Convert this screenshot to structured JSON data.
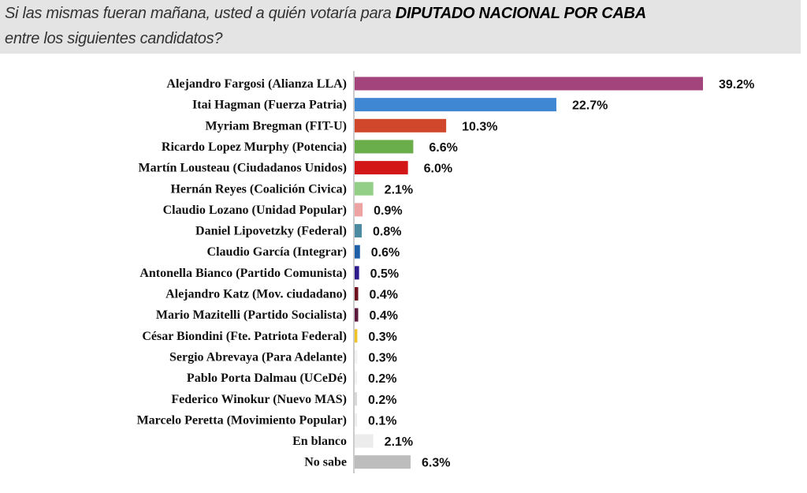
{
  "header": {
    "question_part1": "Si las mismas fueran mañana, usted a quién votaría para ",
    "question_bold": "DIPUTADO NACIONAL POR CABA",
    "question_part2": "entre los siguientes candidatos?"
  },
  "chart_data": {
    "type": "bar",
    "orientation": "horizontal",
    "title": "Si las mismas fueran mañana, usted a quién votaría para DIPUTADO NACIONAL POR CABA entre los siguientes candidatos?",
    "xlabel": "",
    "ylabel": "",
    "xlim": [
      0,
      40
    ],
    "grid": false,
    "categories": [
      "Alejandro Fargosi (Alianza LLA)",
      "Itai Hagman (Fuerza Patria)",
      "Myriam Bregman (FIT-U)",
      "Ricardo Lopez Murphy (Potencia)",
      "Martín Lousteau (Ciudadanos Unidos)",
      "Hernán Reyes (Coalición Civica)",
      "Claudio Lozano (Unidad Popular)",
      "Daniel Lipovetzky (Federal)",
      "Claudio García (Integrar)",
      "Antonella Bianco (Partido Comunista)",
      "Alejandro Katz (Mov. ciudadano)",
      "Mario Mazitelli (Partido Socialista)",
      "César Biondini (Fte. Patriota Federal)",
      "Sergio Abrevaya (Para Adelante)",
      "Pablo Porta Dalmau (UCeDé)",
      "Federico Winokur (Nuevo MAS)",
      "Marcelo Peretta (Movimiento Popular)",
      "En blanco",
      "No sabe"
    ],
    "values": [
      39.2,
      22.7,
      10.3,
      6.6,
      6.0,
      2.1,
      0.9,
      0.8,
      0.6,
      0.5,
      0.4,
      0.4,
      0.3,
      0.3,
      0.2,
      0.2,
      0.1,
      2.1,
      6.3
    ],
    "value_labels": [
      "39.2%",
      "22.7%",
      "10.3%",
      "6.6%",
      "6.0%",
      "2.1%",
      "0.9%",
      "0.8%",
      "0.6%",
      "0.5%",
      "0.4%",
      "0.4%",
      "0.3%",
      "0.3%",
      "0.2%",
      "0.2%",
      "0.1%",
      "2.1%",
      "6.3%"
    ],
    "colors": [
      "#a3457c",
      "#3f86d3",
      "#d1472c",
      "#6aae4b",
      "#d31717",
      "#94cf88",
      "#eea3a3",
      "#4b8aa1",
      "#1f5fa8",
      "#2d1b8c",
      "#6d0f1c",
      "#5b1a3c",
      "#f0c224",
      "#f2f2f2",
      "#f2f2f2",
      "#d8d8d8",
      "#eeeeee",
      "#ececec",
      "#bdbdbd"
    ]
  }
}
